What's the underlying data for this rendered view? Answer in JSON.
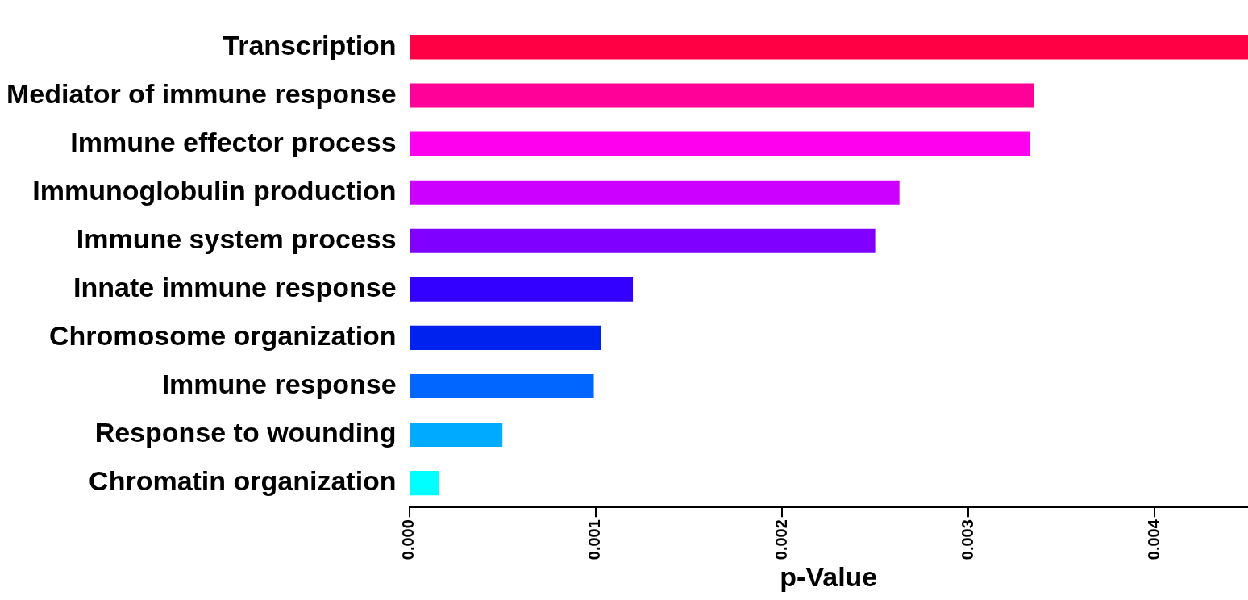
{
  "chart_data": {
    "type": "bar",
    "orientation": "horizontal",
    "xlabel": "p-Value",
    "categories": [
      "Transcription",
      "Mediator of immune response",
      "Immune effector process",
      "Immunoglobulin production",
      "Immune system process",
      "Innate immune response",
      "Chromosome organization",
      "Immune response",
      "Response to wounding",
      "Chromatin organization"
    ],
    "values": [
      0.0045,
      0.00335,
      0.00333,
      0.00263,
      0.0025,
      0.0012,
      0.00103,
      0.00099,
      0.0005,
      0.00016
    ],
    "colors": [
      "#ff0044",
      "#ff0099",
      "#ff00ee",
      "#cc00ff",
      "#7f00ff",
      "#3300ff",
      "#0022ee",
      "#0066ff",
      "#00aaff",
      "#00ffff"
    ],
    "xlim": [
      0,
      0.0045
    ],
    "xticks": [
      {
        "value": 0,
        "label": "0.000"
      },
      {
        "value": 0.001,
        "label": "0.001"
      },
      {
        "value": 0.002,
        "label": "0.002"
      },
      {
        "value": 0.003,
        "label": "0.003"
      },
      {
        "value": 0.004,
        "label": "0.004"
      }
    ],
    "grid": false,
    "legend": false
  }
}
